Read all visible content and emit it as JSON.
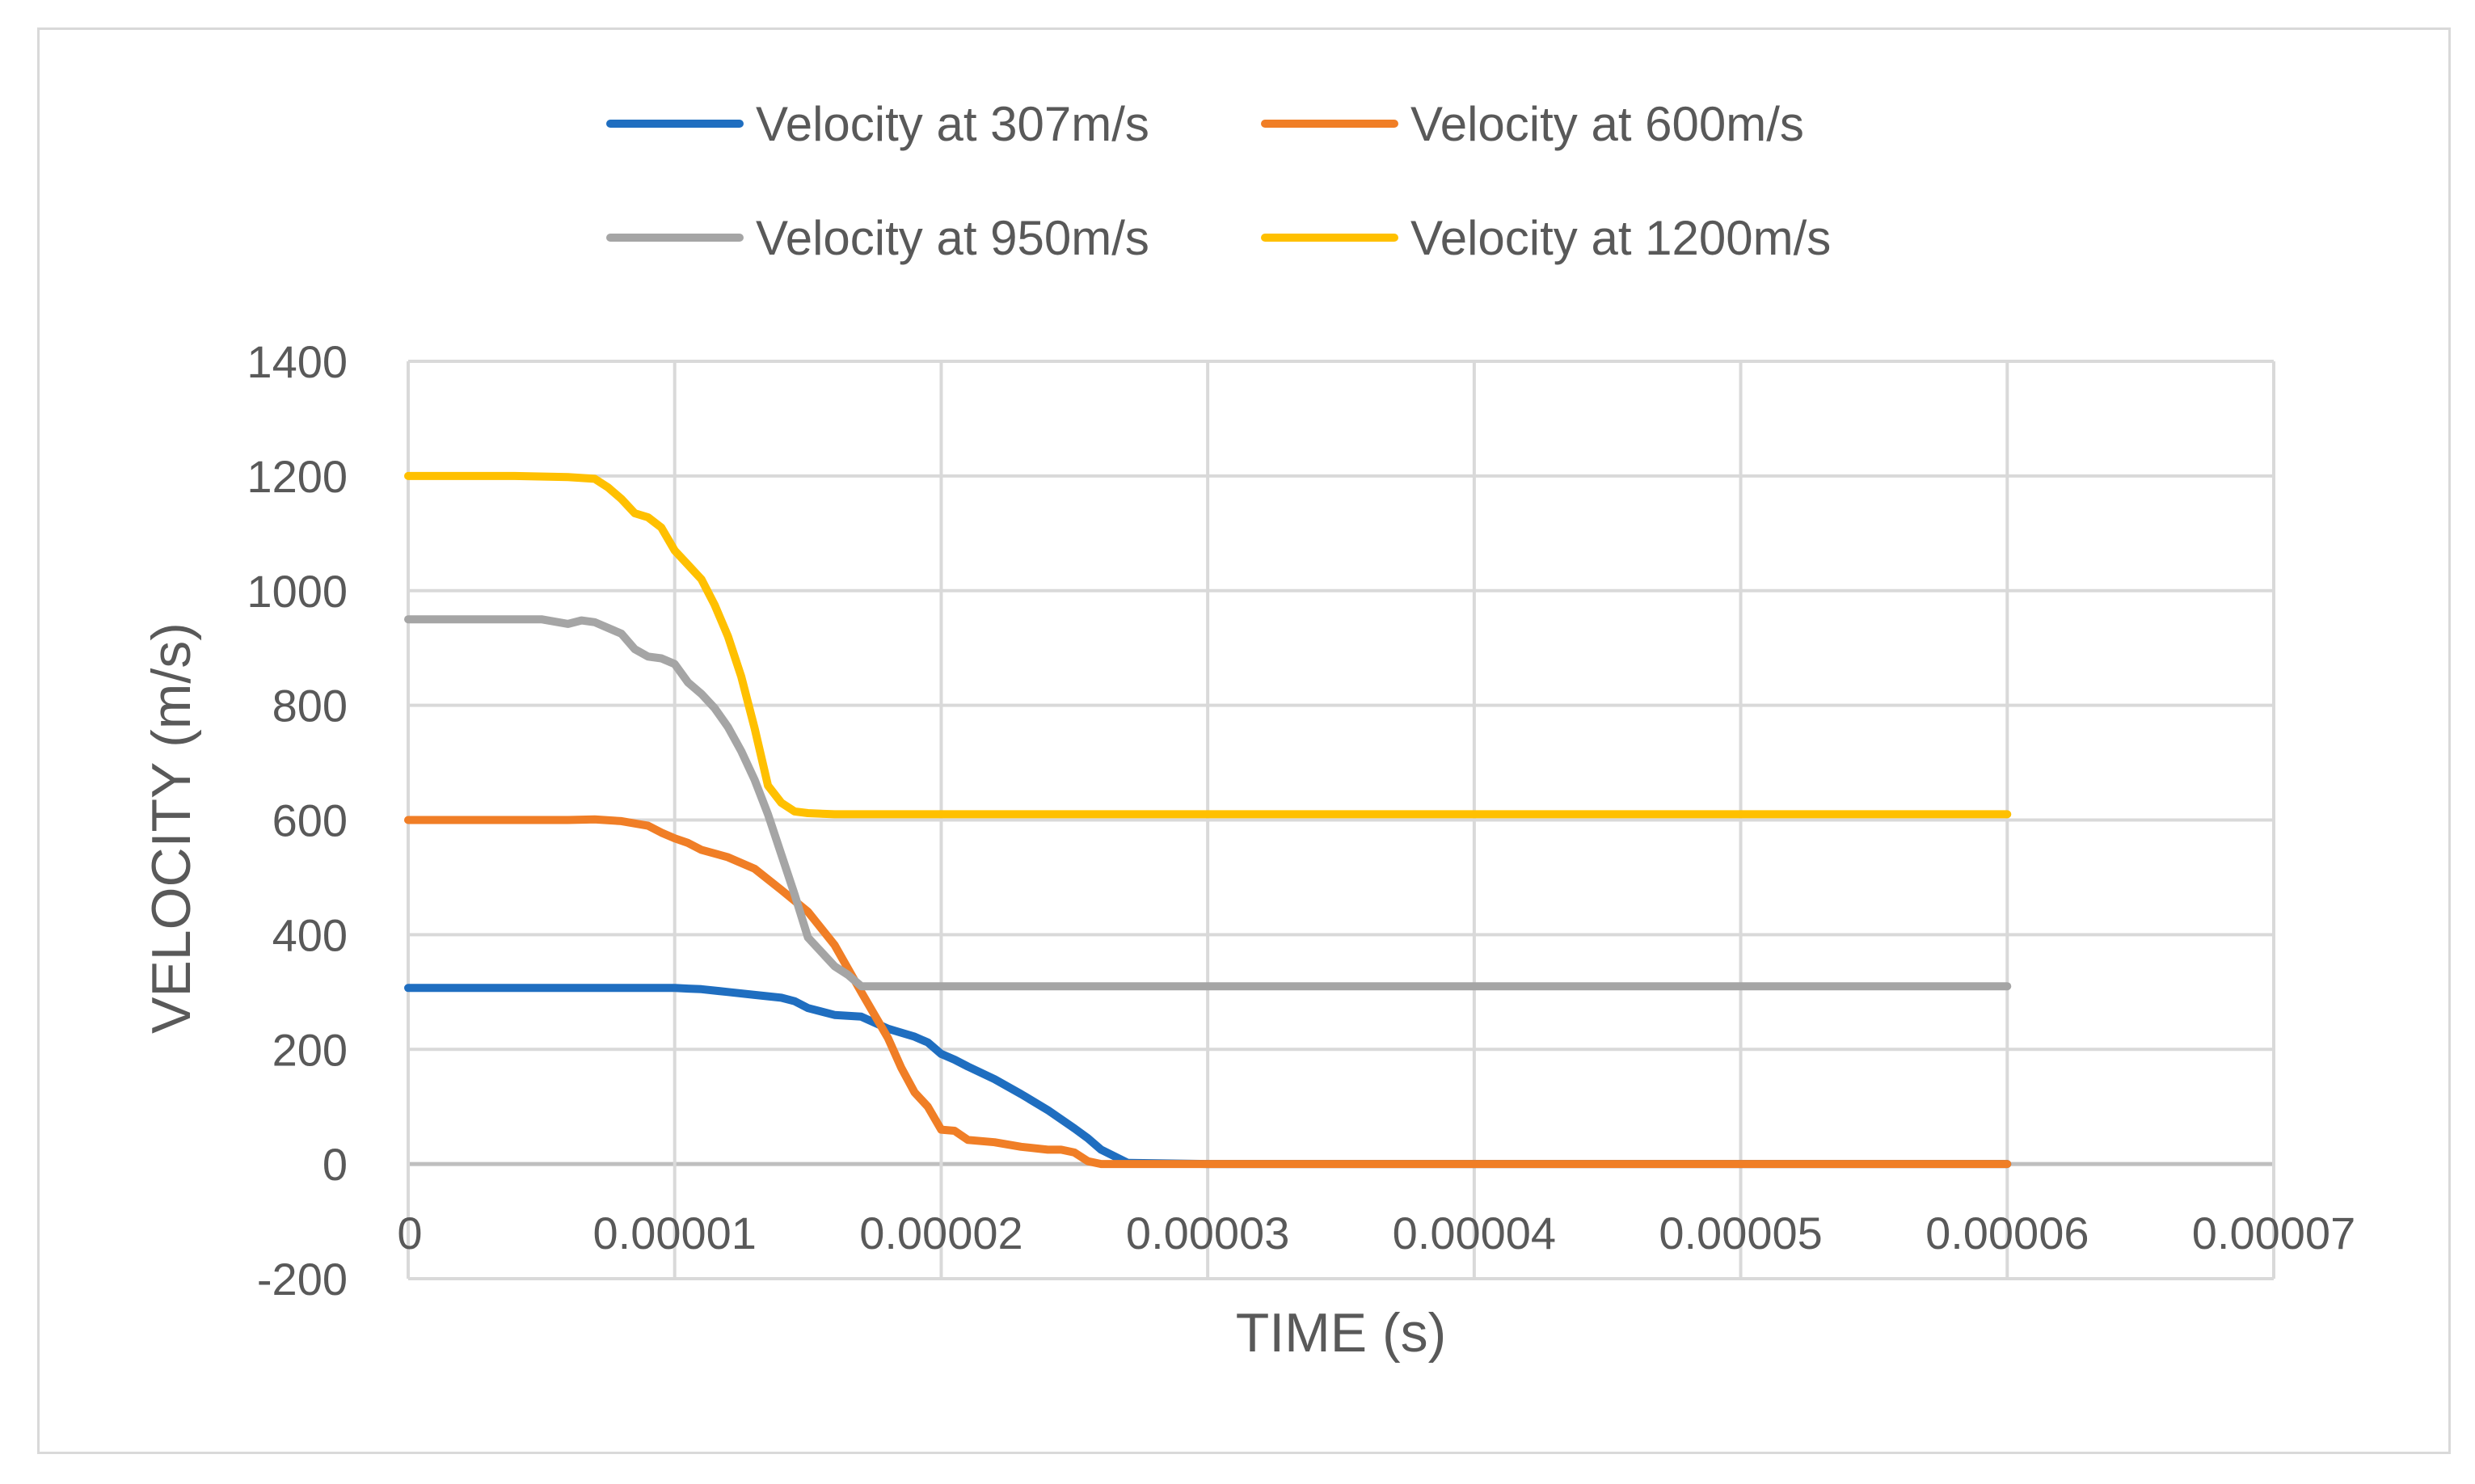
{
  "chart_data": {
    "type": "line",
    "title": "",
    "xlabel": "TIME (s)",
    "ylabel": "VELOCITY (m/s)",
    "xlim": [
      0,
      7e-05
    ],
    "ylim": [
      -200,
      1400
    ],
    "grid": true,
    "legend_position": "top",
    "x_ticks": [
      0,
      1e-05,
      2e-05,
      3e-05,
      4e-05,
      5e-05,
      6e-05,
      7e-05
    ],
    "x_tick_labels": [
      "0",
      "0.00001",
      "0.00002",
      "0.00003",
      "0.00004",
      "0.00005",
      "0.00006",
      "0.00007"
    ],
    "y_ticks": [
      -200,
      0,
      200,
      400,
      600,
      800,
      1000,
      1200,
      1400
    ],
    "y_tick_labels": [
      "-200",
      "0",
      "200",
      "400",
      "600",
      "800",
      "1000",
      "1200",
      "1400"
    ],
    "series": [
      {
        "name": "Velocity at 307m/s",
        "color": "#1f6ec0",
        "x": [
          0,
          2e-06,
          4e-06,
          6e-06,
          8e-06,
          1e-05,
          1.05e-05,
          1.1e-05,
          1.2e-05,
          1.3e-05,
          1.4e-05,
          1.45e-05,
          1.5e-05,
          1.6e-05,
          1.7e-05,
          1.8e-05,
          1.9e-05,
          1.95e-05,
          2e-05,
          2.05e-05,
          2.1e-05,
          2.2e-05,
          2.3e-05,
          2.4e-05,
          2.5e-05,
          2.55e-05,
          2.6e-05,
          2.7e-05,
          3e-05,
          4e-05,
          5e-05,
          6e-05
        ],
        "y": [
          307,
          307,
          307,
          307,
          307,
          307,
          306,
          305,
          300,
          295,
          290,
          284,
          272,
          260,
          257,
          236,
          222,
          212,
          192,
          182,
          170,
          148,
          122,
          94,
          62,
          45,
          25,
          2,
          0,
          0,
          0,
          0
        ]
      },
      {
        "name": "Velocity at 600m/s",
        "color": "#f07e26",
        "x": [
          0,
          2e-06,
          4e-06,
          6e-06,
          7e-06,
          8e-06,
          9e-06,
          9.5e-06,
          1e-05,
          1.05e-05,
          1.1e-05,
          1.2e-05,
          1.3e-05,
          1.4e-05,
          1.5e-05,
          1.6e-05,
          1.7e-05,
          1.8e-05,
          1.85e-05,
          1.9e-05,
          1.95e-05,
          2e-05,
          2.05e-05,
          2.1e-05,
          2.2e-05,
          2.3e-05,
          2.4e-05,
          2.45e-05,
          2.5e-05,
          2.55e-05,
          2.6e-05,
          3e-05,
          4e-05,
          5e-05,
          6e-05
        ],
        "y": [
          600,
          600,
          600,
          600,
          601,
          598,
          590,
          578,
          568,
          560,
          548,
          535,
          515,
          478,
          440,
          382,
          300,
          220,
          168,
          125,
          100,
          60,
          58,
          42,
          38,
          30,
          25,
          25,
          20,
          5,
          0,
          0,
          0,
          0,
          0
        ]
      },
      {
        "name": "Velocity at 950m/s",
        "color": "#a5a5a5",
        "x": [
          0,
          2e-06,
          4e-06,
          5e-06,
          6e-06,
          6.5e-06,
          7e-06,
          8e-06,
          8.5e-06,
          9e-06,
          9.5e-06,
          1e-05,
          1.05e-05,
          1.1e-05,
          1.15e-05,
          1.2e-05,
          1.25e-05,
          1.3e-05,
          1.35e-05,
          1.4e-05,
          1.45e-05,
          1.5e-05,
          1.6e-05,
          1.65e-05,
          1.7e-05,
          1.75e-05,
          1.8e-05,
          2e-05,
          3e-05,
          4e-05,
          5e-05,
          6e-05
        ],
        "y": [
          950,
          950,
          950,
          950,
          942,
          948,
          945,
          925,
          898,
          885,
          882,
          872,
          840,
          820,
          795,
          762,
          720,
          670,
          610,
          540,
          470,
          395,
          345,
          330,
          310,
          310,
          310,
          310,
          310,
          310,
          310,
          310
        ]
      },
      {
        "name": "Velocity at 1200m/s",
        "color": "#ffc000",
        "x": [
          0,
          2e-06,
          4e-06,
          6e-06,
          7e-06,
          7.5e-06,
          8e-06,
          8.5e-06,
          9e-06,
          9.5e-06,
          1e-05,
          1.05e-05,
          1.1e-05,
          1.15e-05,
          1.2e-05,
          1.25e-05,
          1.3e-05,
          1.35e-05,
          1.4e-05,
          1.45e-05,
          1.5e-05,
          1.6e-05,
          2e-05,
          3e-05,
          4e-05,
          5e-05,
          6e-05
        ],
        "y": [
          1200,
          1200,
          1200,
          1198,
          1195,
          1180,
          1160,
          1135,
          1128,
          1110,
          1070,
          1045,
          1020,
          975,
          920,
          850,
          760,
          660,
          630,
          615,
          612,
          610,
          610,
          610,
          610,
          610,
          610
        ]
      }
    ]
  }
}
